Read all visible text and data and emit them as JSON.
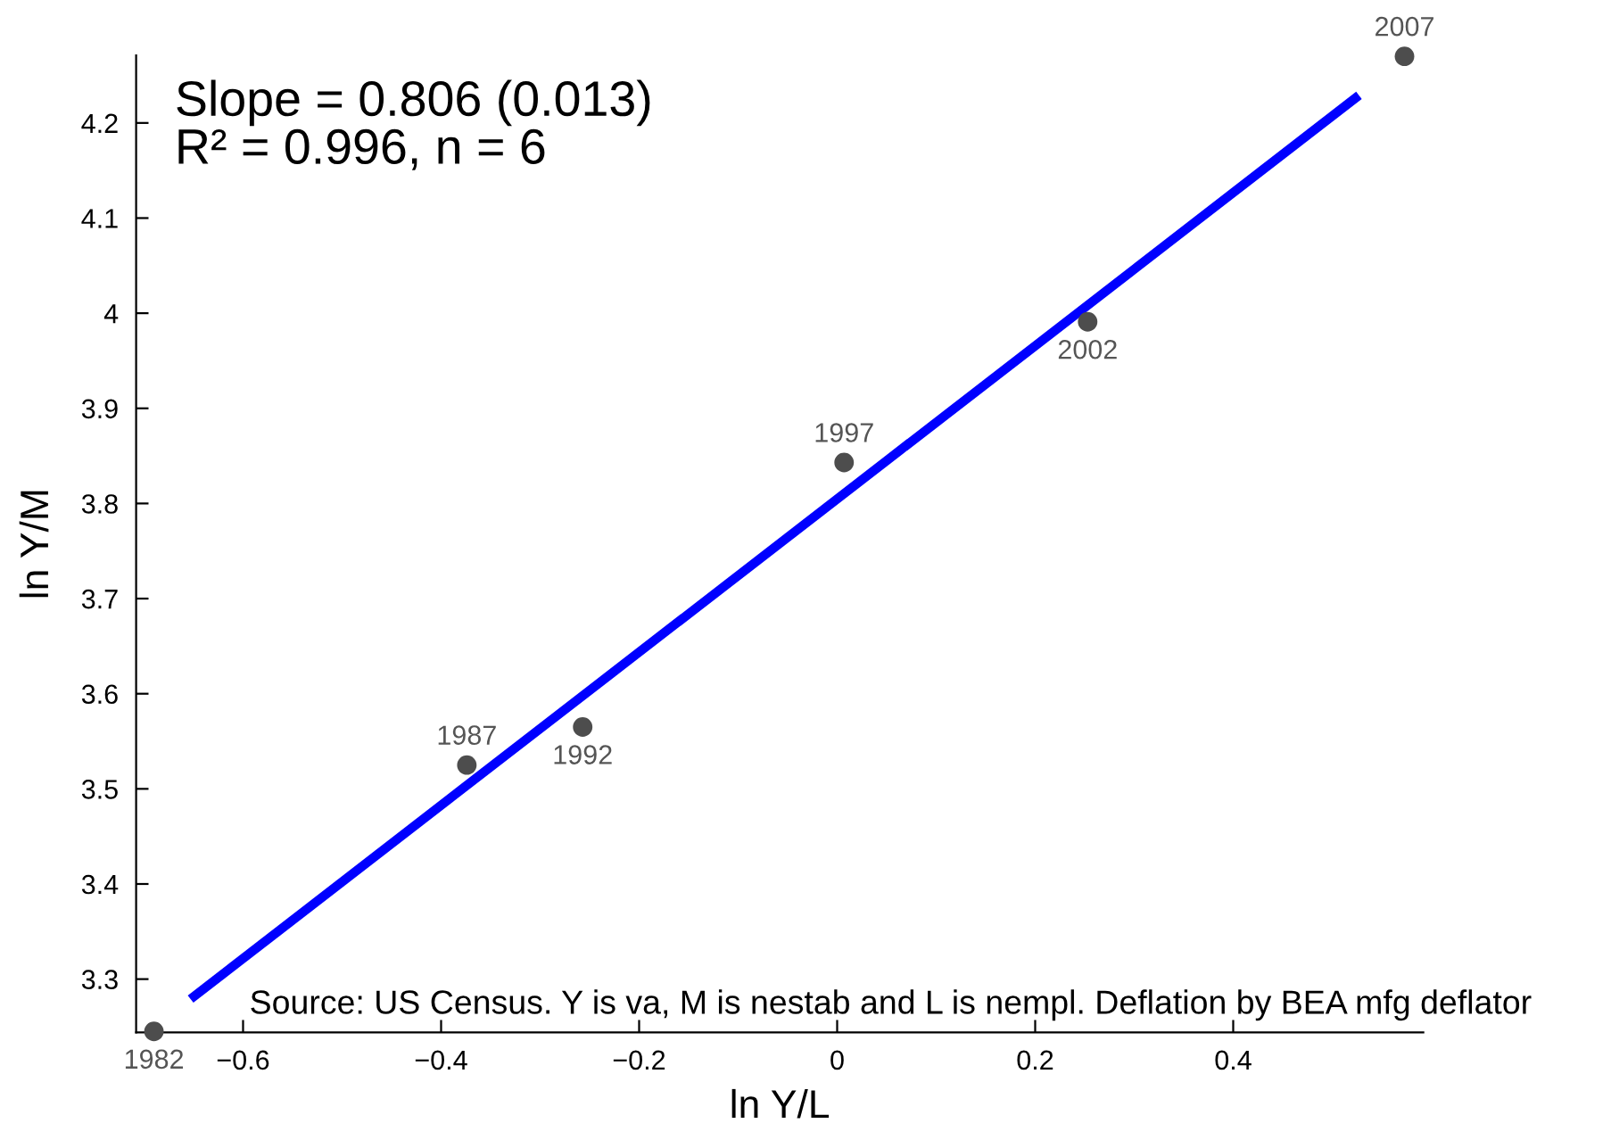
{
  "chart_data": {
    "type": "scatter",
    "xlabel": "ln Y/L",
    "ylabel": "ln Y/M",
    "series": [
      {
        "color": "#4d4d4d",
        "marker": "circle",
        "x": [
          -0.69,
          -0.374,
          -0.257,
          0.007,
          0.253,
          0.573
        ],
        "values": [
          3.245,
          3.525,
          3.565,
          3.843,
          3.991,
          4.27
        ]
      },
      {
        "type": "line",
        "color": "#0000ff",
        "x": [
          -0.653,
          0.527
        ],
        "values": [
          3.279,
          4.229
        ]
      }
    ],
    "xlim": [
      -0.708,
      0.592
    ],
    "ylim": [
      3.244,
      4.271
    ],
    "xticks": [
      {
        "value": -0.6,
        "label": "−0.6"
      },
      {
        "value": -0.4,
        "label": "−0.4"
      },
      {
        "value": -0.2,
        "label": "−0.2"
      },
      0,
      0.2,
      0.4
    ],
    "yticks": [
      3.3,
      3.4,
      3.5,
      3.6,
      3.7,
      3.8,
      3.9,
      4,
      4.1,
      4.2
    ],
    "annotations": [
      "Slope = 0.806 (0.013)\nR² = 0.996, n = 6",
      {
        "text": "1982",
        "x": -0.69,
        "y": 3.245
      },
      {
        "text": "1987",
        "x": -0.374,
        "y": 3.525
      },
      {
        "text": "1992",
        "x": -0.257,
        "y": 3.565
      },
      {
        "text": "1997",
        "x": 0.007,
        "y": 3.843
      },
      {
        "text": "2002",
        "x": 0.253,
        "y": 3.991
      },
      {
        "text": "2007",
        "x": 0.573,
        "y": 4.27
      },
      "Source: US Census. Y is va, M is nestab and L is nempl. Deflation by BEA mfg deflator"
    ]
  }
}
